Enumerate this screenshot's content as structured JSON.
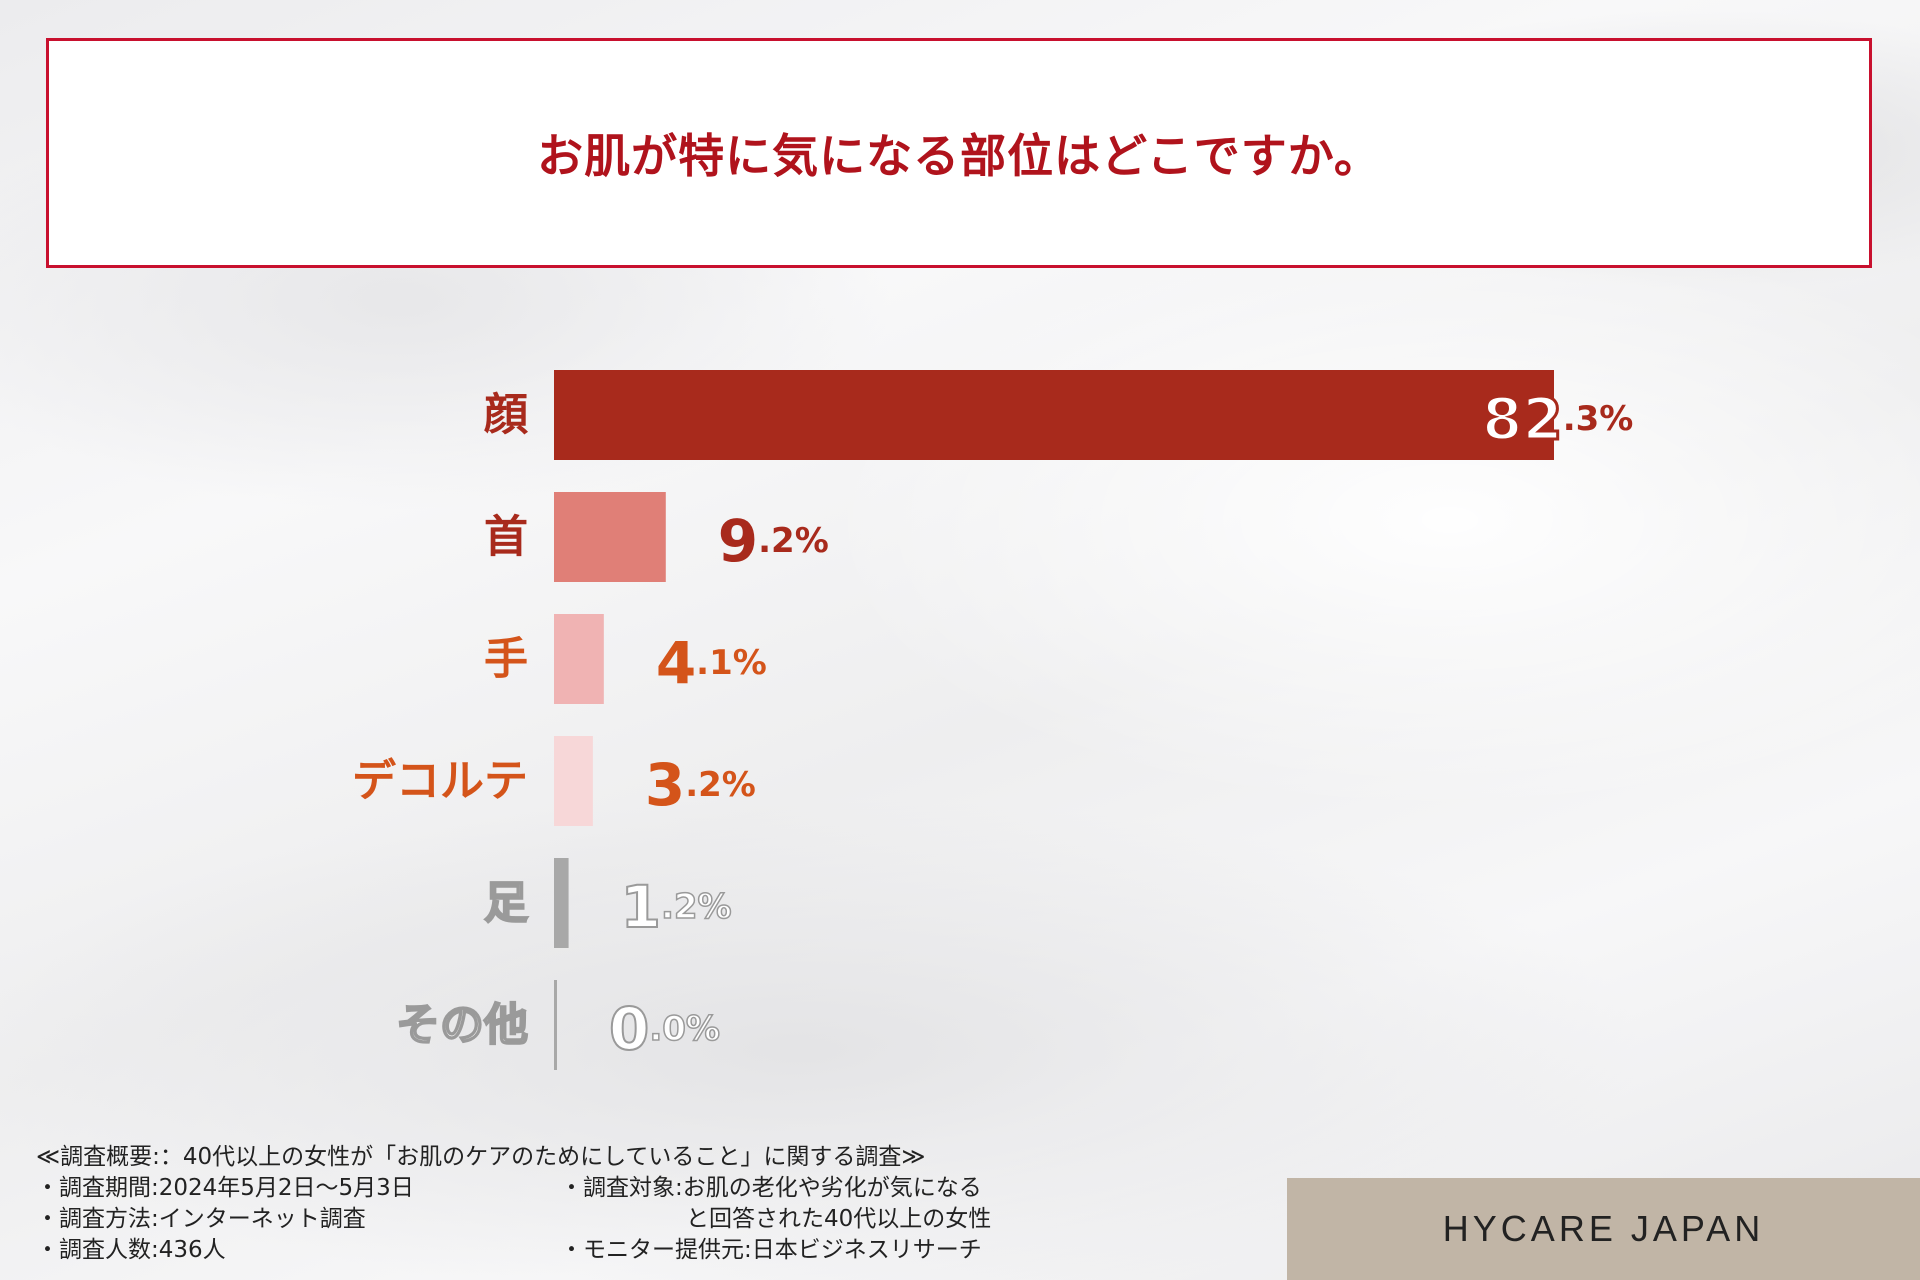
{
  "title": "お肌が特に気になる部位はどこですか。",
  "chart_data": {
    "type": "bar",
    "orientation": "horizontal",
    "title": "お肌が特に気になる部位はどこですか。",
    "categories": [
      "顔",
      "首",
      "手",
      "デコルテ",
      "足",
      "その他"
    ],
    "values": [
      82.3,
      9.2,
      4.1,
      3.2,
      1.2,
      0.0
    ],
    "value_labels": [
      {
        "int": "82",
        "dec": ".3%"
      },
      {
        "int": "9",
        "dec": ".2%"
      },
      {
        "int": "4",
        "dec": ".1%"
      },
      {
        "int": "3",
        "dec": ".2%"
      },
      {
        "int": "1",
        "dec": ".2%"
      },
      {
        "int": "0",
        "dec": ".0%"
      }
    ],
    "bar_colors": [
      "#a82a1c",
      "#e07f77",
      "#f0b3b3",
      "#f7d7d8",
      "#a8a8a8",
      "#a8a8a8"
    ],
    "label_colors": [
      "#a82a1c",
      "#a82a1c",
      "#d4541a",
      "#d4541a",
      "#9a9a9a",
      "#9a9a9a"
    ],
    "label_outlined": [
      false,
      false,
      false,
      false,
      true,
      true
    ],
    "xlim": [
      0,
      82.3
    ],
    "grid": false,
    "legend": "none"
  },
  "footer": {
    "summary": "≪調査概要:：40代以上の女性が「お肌のケアのためにしていること」に関する調査≫",
    "period": "・調査期間:2024年5月2日～5月3日",
    "method": "・調査方法:インターネット調査",
    "count": "・調査人数:436人",
    "target_line1": "・調査対象:お肌の老化や劣化が気になる",
    "target_line2": "と回答された40代以上の女性",
    "provider": "・モニター提供元:日本ビジネスリサーチ"
  },
  "brand": "HYCARE JAPAN"
}
